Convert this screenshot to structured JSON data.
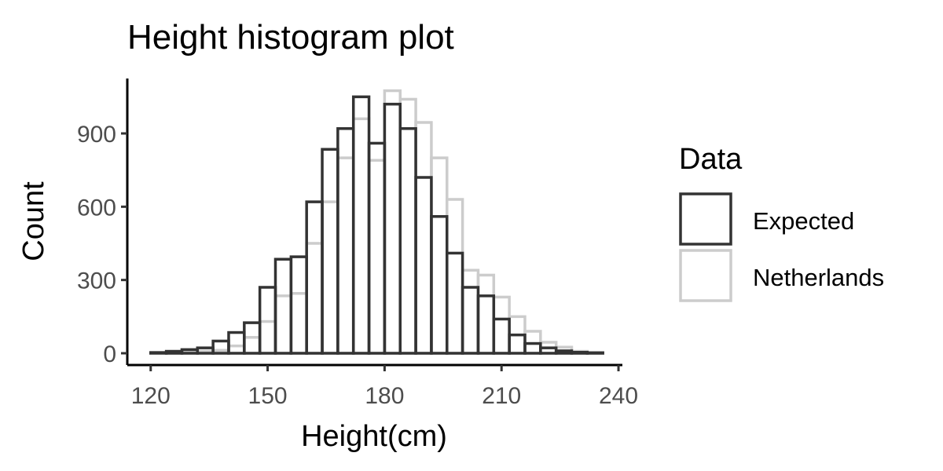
{
  "chart_data": {
    "type": "histogram",
    "title": "Height histogram plot",
    "xlabel": "Height(cm)",
    "ylabel": "Count",
    "xlim": [
      120,
      240
    ],
    "ylim": [
      0,
      1100
    ],
    "x_ticks": [
      120,
      150,
      180,
      210,
      240
    ],
    "y_ticks": [
      0,
      300,
      600,
      900
    ],
    "grid": false,
    "bin_width": 4,
    "bin_starts": [
      120,
      124,
      128,
      132,
      136,
      140,
      144,
      148,
      152,
      156,
      160,
      164,
      168,
      172,
      176,
      180,
      184,
      188,
      192,
      196,
      200,
      204,
      208,
      212,
      216,
      220,
      224,
      228,
      232
    ],
    "legend": {
      "title": "Data",
      "position": "right"
    },
    "series": [
      {
        "name": "Expected",
        "color": "#333333",
        "values": [
          3,
          8,
          15,
          22,
          50,
          85,
          125,
          270,
          385,
          395,
          620,
          835,
          920,
          1050,
          860,
          1020,
          920,
          720,
          560,
          410,
          270,
          235,
          140,
          75,
          40,
          22,
          10,
          4,
          2
        ]
      },
      {
        "name": "Netherlands",
        "color": "#cccccc",
        "values": [
          0,
          2,
          5,
          8,
          12,
          30,
          65,
          130,
          235,
          245,
          450,
          620,
          800,
          960,
          790,
          1075,
          1040,
          945,
          800,
          630,
          340,
          320,
          230,
          150,
          90,
          45,
          25,
          8,
          3
        ]
      }
    ]
  }
}
